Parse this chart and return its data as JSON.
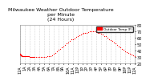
{
  "title": "Milwaukee Weather Outdoor Temperature\nper Minute\n(24 Hours)",
  "title_fontsize": 4.5,
  "dot_color": "#ff0000",
  "dot_size": 0.8,
  "background_color": "#ffffff",
  "plot_bg_color": "#ffffff",
  "legend_label": "Outdoor Temp (F)",
  "legend_color": "#ff0000",
  "xlabel_fontsize": 3.5,
  "ylabel_fontsize": 3.5,
  "ylim": [
    20,
    80
  ],
  "xlim": [
    0,
    1440
  ],
  "yticks": [
    20,
    30,
    40,
    50,
    60,
    70,
    80
  ],
  "xtick_positions": [
    0,
    60,
    120,
    180,
    240,
    300,
    360,
    420,
    480,
    540,
    600,
    660,
    720,
    780,
    840,
    900,
    960,
    1020,
    1080,
    1140,
    1200,
    1260,
    1320,
    1380,
    1440
  ],
  "xtick_labels": [
    "12A",
    "1A",
    "2A",
    "3A",
    "4A",
    "5A",
    "6A",
    "7A",
    "8A",
    "9A",
    "10A",
    "11A",
    "12P",
    "1P",
    "2P",
    "3P",
    "4P",
    "5P",
    "6P",
    "7P",
    "8P",
    "9P",
    "10P",
    "11P",
    "12A"
  ],
  "data_x": [
    0,
    1,
    2,
    3,
    4,
    5,
    6,
    7,
    8,
    9,
    10,
    15,
    20,
    25,
    30,
    35,
    40,
    45,
    50,
    55,
    60,
    70,
    80,
    90,
    100,
    110,
    120,
    130,
    140,
    150,
    160,
    170,
    180,
    200,
    220,
    240,
    260,
    280,
    300,
    320,
    340,
    360,
    380,
    400,
    420,
    440,
    460,
    480,
    500,
    520,
    540,
    560,
    580,
    600,
    620,
    640,
    660,
    680,
    700,
    720,
    740,
    760,
    780,
    800,
    820,
    840,
    860,
    880,
    900,
    920,
    940,
    960,
    980,
    1000,
    1020,
    1040,
    1060,
    1080,
    1100,
    1120,
    1140,
    1160,
    1180,
    1200,
    1220,
    1240,
    1260,
    1280,
    1300,
    1320,
    1340,
    1360,
    1380,
    1400,
    1420,
    1440
  ],
  "data_y": [
    35,
    35,
    34,
    34,
    34,
    34,
    33,
    33,
    33,
    33,
    33,
    33,
    32,
    32,
    32,
    32,
    31,
    31,
    31,
    31,
    31,
    31,
    31,
    31,
    31,
    31,
    30,
    30,
    30,
    30,
    30,
    30,
    30,
    30,
    30,
    30,
    30,
    30,
    30,
    30,
    31,
    31,
    32,
    33,
    35,
    37,
    39,
    41,
    43,
    45,
    47,
    49,
    51,
    53,
    55,
    57,
    58,
    59,
    61,
    63,
    64,
    65,
    66,
    67,
    68,
    68,
    69,
    70,
    70,
    70,
    70,
    69,
    68,
    67,
    66,
    65,
    63,
    62,
    60,
    58,
    56,
    55,
    53,
    51,
    49,
    47,
    45,
    43,
    41,
    39,
    38,
    36,
    35,
    34,
    33,
    32
  ]
}
